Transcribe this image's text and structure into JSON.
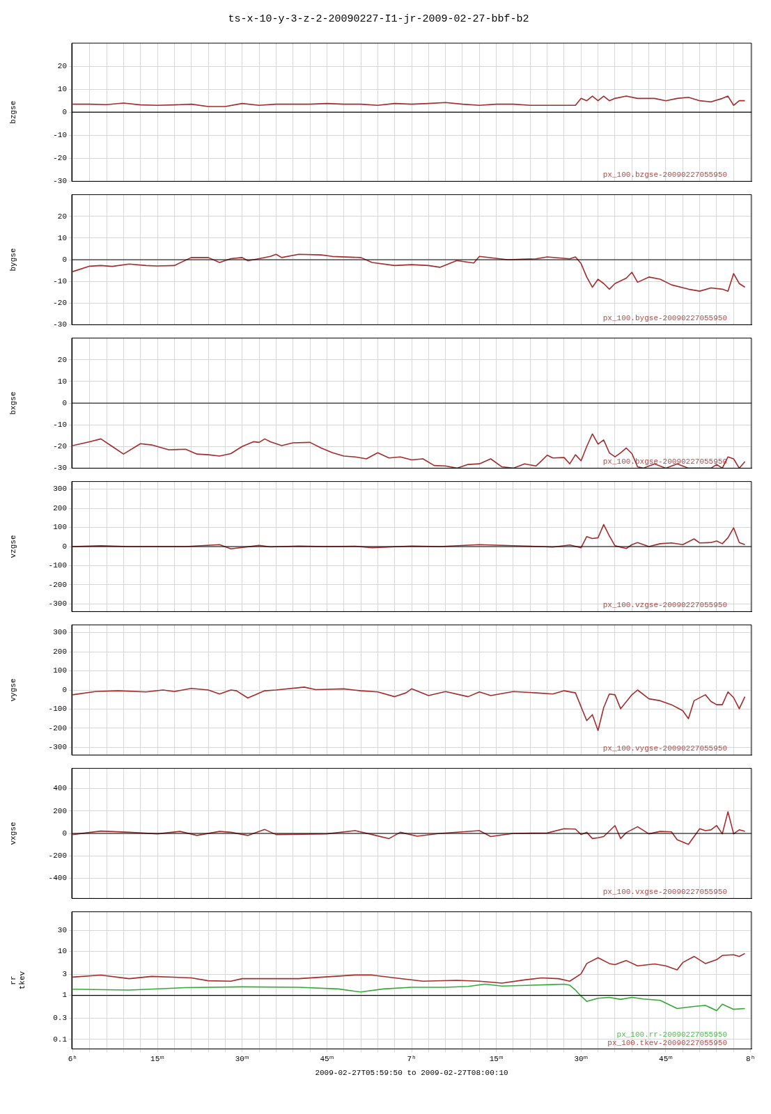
{
  "chart_data": [
    {
      "type": "line",
      "title": "ts-x-10-y-3-z-2-20090227-I1-jr-2009-02-27-bbf-b2",
      "ylabel": "bzgse",
      "xlim": [
        "2009-02-27T05:59:50",
        "2009-02-27T08:00:10"
      ],
      "ylim": [
        -30,
        30
      ],
      "yticks": [
        -30,
        -20,
        -10,
        0,
        10,
        20
      ],
      "grid": true,
      "legend": "bottom right",
      "tick_labels": "y",
      "ref_lines": [
        {
          "axis": "y",
          "value": 0,
          "color": "#000000"
        }
      ],
      "series": [
        {
          "name": "px_100.bzgse-20090227055950",
          "color": "#a52a2a",
          "x": [
            "2009-02-27T06:00",
            "2009-02-27T06:03",
            "2009-02-27T06:06",
            "2009-02-27T06:09",
            "2009-02-27T06:12",
            "2009-02-27T06:15",
            "2009-02-27T06:18",
            "2009-02-27T06:21",
            "2009-02-27T06:24",
            "2009-02-27T06:27",
            "2009-02-27T06:30",
            "2009-02-27T06:33",
            "2009-02-27T06:36",
            "2009-02-27T06:39",
            "2009-02-27T06:42",
            "2009-02-27T06:45",
            "2009-02-27T06:48",
            "2009-02-27T06:51",
            "2009-02-27T06:54",
            "2009-02-27T06:57",
            "2009-02-27T07:00",
            "2009-02-27T07:03",
            "2009-02-27T07:06",
            "2009-02-27T07:09",
            "2009-02-27T07:12",
            "2009-02-27T07:15",
            "2009-02-27T07:18",
            "2009-02-27T07:21",
            "2009-02-27T07:24",
            "2009-02-27T07:27",
            "2009-02-27T07:29",
            "2009-02-27T07:30",
            "2009-02-27T07:31",
            "2009-02-27T07:32",
            "2009-02-27T07:33",
            "2009-02-27T07:34",
            "2009-02-27T07:35",
            "2009-02-27T07:36",
            "2009-02-27T07:38",
            "2009-02-27T07:40",
            "2009-02-27T07:43",
            "2009-02-27T07:45",
            "2009-02-27T07:47",
            "2009-02-27T07:49",
            "2009-02-27T07:51",
            "2009-02-27T07:53",
            "2009-02-27T07:55",
            "2009-02-27T07:56",
            "2009-02-27T07:57",
            "2009-02-27T07:58",
            "2009-02-27T07:59"
          ],
          "values": [
            3.5,
            3.5,
            3.3,
            4,
            3.2,
            3,
            3.2,
            3.5,
            2.5,
            2.5,
            3.8,
            3,
            3.5,
            3.5,
            3.5,
            3.8,
            3.5,
            3.5,
            3,
            3.8,
            3.5,
            3.8,
            4.2,
            3.5,
            3,
            3.5,
            3.5,
            3,
            3,
            3,
            3,
            6,
            5,
            7,
            5,
            7,
            5,
            6,
            7,
            6,
            6,
            5,
            6,
            6.5,
            5,
            4.5,
            6,
            7,
            3,
            5,
            5
          ]
        }
      ]
    },
    {
      "type": "line",
      "ylabel": "bygse",
      "xlim": [
        "2009-02-27T05:59:50",
        "2009-02-27T08:00:10"
      ],
      "ylim": [
        -30,
        30
      ],
      "yticks": [
        -30,
        -20,
        -10,
        0,
        10,
        20
      ],
      "grid": true,
      "legend": "bottom right",
      "tick_labels": "y",
      "ref_lines": [
        {
          "axis": "y",
          "value": 0,
          "color": "#000000"
        }
      ],
      "series": [
        {
          "name": "px_100.bygse-20090227055950",
          "color": "#a52a2a",
          "x": [
            "2009-02-27T06:00",
            "2009-02-27T06:03",
            "2009-02-27T06:05",
            "2009-02-27T06:07",
            "2009-02-27T06:10",
            "2009-02-27T06:13",
            "2009-02-27T06:15",
            "2009-02-27T06:18",
            "2009-02-27T06:21",
            "2009-02-27T06:24",
            "2009-02-27T06:26",
            "2009-02-27T06:28",
            "2009-02-27T06:30",
            "2009-02-27T06:31",
            "2009-02-27T06:33",
            "2009-02-27T06:35",
            "2009-02-27T06:36",
            "2009-02-27T06:37",
            "2009-02-27T06:40",
            "2009-02-27T06:44",
            "2009-02-27T06:46",
            "2009-02-27T06:51",
            "2009-02-27T06:53",
            "2009-02-27T06:57",
            "2009-02-27T07:00",
            "2009-02-27T07:03",
            "2009-02-27T07:05",
            "2009-02-27T07:08",
            "2009-02-27T07:11",
            "2009-02-27T07:12",
            "2009-02-27T07:17",
            "2009-02-27T07:22",
            "2009-02-27T07:24",
            "2009-02-27T07:28",
            "2009-02-27T07:29",
            "2009-02-27T07:30",
            "2009-02-27T07:31",
            "2009-02-27T07:32",
            "2009-02-27T07:33",
            "2009-02-27T07:34",
            "2009-02-27T07:35",
            "2009-02-27T07:36",
            "2009-02-27T07:38",
            "2009-02-27T07:39",
            "2009-02-27T07:40",
            "2009-02-27T07:42",
            "2009-02-27T07:44",
            "2009-02-27T07:46",
            "2009-02-27T07:49",
            "2009-02-27T07:51",
            "2009-02-27T07:53",
            "2009-02-27T07:55",
            "2009-02-27T07:56",
            "2009-02-27T07:57",
            "2009-02-27T07:58",
            "2009-02-27T07:59"
          ],
          "values": [
            -5.5,
            -3,
            -2.7,
            -3.1,
            -2,
            -2.7,
            -2.9,
            -2.7,
            1,
            1,
            -1.3,
            0.5,
            1,
            -0.5,
            0.5,
            1.5,
            2.5,
            1,
            2.5,
            2.2,
            1.5,
            1,
            -1.3,
            -2.7,
            -2.3,
            -2.7,
            -3.5,
            -0.4,
            -1.5,
            1.5,
            0,
            0.4,
            1.3,
            0.4,
            1.3,
            -1.8,
            -8,
            -12.7,
            -9,
            -11,
            -13.6,
            -11,
            -8.5,
            -5.8,
            -10.4,
            -8,
            -9,
            -11.6,
            -13.6,
            -14.5,
            -13,
            -13.6,
            -14.5,
            -6.4,
            -11,
            -12.7
          ]
        }
      ]
    },
    {
      "type": "line",
      "ylabel": "bxgse",
      "xlim": [
        "2009-02-27T05:59:50",
        "2009-02-27T08:00:10"
      ],
      "ylim": [
        -30,
        30
      ],
      "yticks": [
        -30,
        -20,
        -10,
        0,
        10,
        20
      ],
      "grid": true,
      "legend": "bottom right",
      "tick_labels": "y",
      "ref_lines": [
        {
          "axis": "y",
          "value": 0,
          "color": "#000000"
        }
      ],
      "series": [
        {
          "name": "px_100.bxgse-20090227055950",
          "color": "#a52a2a",
          "x": [
            "2009-02-27T06:00",
            "2009-02-27T06:03",
            "2009-02-27T06:05",
            "2009-02-27T06:07",
            "2009-02-27T06:09",
            "2009-02-27T06:12",
            "2009-02-27T06:14",
            "2009-02-27T06:17",
            "2009-02-27T06:20",
            "2009-02-27T06:22",
            "2009-02-27T06:24",
            "2009-02-27T06:26",
            "2009-02-27T06:28",
            "2009-02-27T06:30",
            "2009-02-27T06:32",
            "2009-02-27T06:33",
            "2009-02-27T06:34",
            "2009-02-27T06:35",
            "2009-02-27T06:37",
            "2009-02-27T06:39",
            "2009-02-27T06:42",
            "2009-02-27T06:44",
            "2009-02-27T06:46",
            "2009-02-27T06:48",
            "2009-02-27T06:50",
            "2009-02-27T06:52",
            "2009-02-27T06:54",
            "2009-02-27T06:56",
            "2009-02-27T06:58",
            "2009-02-27T07:00",
            "2009-02-27T07:02",
            "2009-02-27T07:04",
            "2009-02-27T07:06",
            "2009-02-27T07:08",
            "2009-02-27T07:10",
            "2009-02-27T07:12",
            "2009-02-27T07:14",
            "2009-02-27T07:16",
            "2009-02-27T07:18",
            "2009-02-27T07:20",
            "2009-02-27T07:22",
            "2009-02-27T07:23",
            "2009-02-27T07:24",
            "2009-02-27T07:25",
            "2009-02-27T07:27",
            "2009-02-27T07:28",
            "2009-02-27T07:29",
            "2009-02-27T07:30",
            "2009-02-27T07:31",
            "2009-02-27T07:32",
            "2009-02-27T07:33",
            "2009-02-27T07:34",
            "2009-02-27T07:35",
            "2009-02-27T07:36",
            "2009-02-27T07:37",
            "2009-02-27T07:38",
            "2009-02-27T07:39",
            "2009-02-27T07:40",
            "2009-02-27T07:41",
            "2009-02-27T07:43",
            "2009-02-27T07:45",
            "2009-02-27T07:47",
            "2009-02-27T07:49",
            "2009-02-27T07:53",
            "2009-02-27T07:54",
            "2009-02-27T07:55",
            "2009-02-27T07:56",
            "2009-02-27T07:57",
            "2009-02-27T07:58",
            "2009-02-27T07:59"
          ],
          "values": [
            -19.6,
            -17.8,
            -16.5,
            -20,
            -23.5,
            -18.7,
            -19.3,
            -21.5,
            -21.3,
            -23.5,
            -23.8,
            -24.4,
            -23.3,
            -20,
            -17.8,
            -18.1,
            -16.5,
            -17.8,
            -19.6,
            -18.3,
            -18.1,
            -20.7,
            -22.9,
            -24.4,
            -24.8,
            -25.7,
            -22.9,
            -25.3,
            -24.8,
            -26.2,
            -25.7,
            -28.8,
            -29,
            -30,
            -28.3,
            -28,
            -25.7,
            -29.4,
            -30,
            -28,
            -29,
            -26.6,
            -24,
            -25.3,
            -25.1,
            -28,
            -23.8,
            -26.6,
            -20,
            -14.2,
            -18.9,
            -17,
            -22.9,
            -24.8,
            -22.9,
            -20.7,
            -23.3,
            -29.4,
            -30,
            -28,
            -30,
            -28,
            -30,
            -30,
            -28.3,
            -30,
            -24.8,
            -25.7,
            -30,
            -27
          ]
        }
      ]
    },
    {
      "type": "line",
      "ylabel": "vzgse",
      "xlim": [
        "2009-02-27T05:59:50",
        "2009-02-27T08:00:10"
      ],
      "ylim": [
        -340,
        340
      ],
      "yticks": [
        -300,
        -200,
        -100,
        0,
        100,
        200,
        300
      ],
      "grid": true,
      "legend": "bottom right",
      "tick_labels": "y",
      "ref_lines": [
        {
          "axis": "y",
          "value": 0,
          "color": "#000000"
        }
      ],
      "series": [
        {
          "name": "px_100.vzgse-20090227055950",
          "color": "#a52a2a",
          "x": [
            "2009-02-27T06:00",
            "2009-02-27T06:05",
            "2009-02-27T06:10",
            "2009-02-27T06:15",
            "2009-02-27T06:20",
            "2009-02-27T06:26",
            "2009-02-27T06:28",
            "2009-02-27T06:33",
            "2009-02-27T06:35",
            "2009-02-27T06:40",
            "2009-02-27T06:45",
            "2009-02-27T06:50",
            "2009-02-27T06:53",
            "2009-02-27T07:00",
            "2009-02-27T07:05",
            "2009-02-27T07:12",
            "2009-02-27T07:20",
            "2009-02-27T07:25",
            "2009-02-27T07:28",
            "2009-02-27T07:30",
            "2009-02-27T07:31",
            "2009-02-27T07:32",
            "2009-02-27T07:33",
            "2009-02-27T07:34",
            "2009-02-27T07:35",
            "2009-02-27T07:36",
            "2009-02-27T07:38",
            "2009-02-27T07:39",
            "2009-02-27T07:40",
            "2009-02-27T07:42",
            "2009-02-27T07:44",
            "2009-02-27T07:46",
            "2009-02-27T07:48",
            "2009-02-27T07:50",
            "2009-02-27T07:51",
            "2009-02-27T07:53",
            "2009-02-27T07:54",
            "2009-02-27T07:55",
            "2009-02-27T07:56",
            "2009-02-27T07:57",
            "2009-02-27T07:58",
            "2009-02-27T07:59"
          ],
          "values": [
            0,
            4,
            0,
            0,
            0,
            10,
            -12,
            6,
            -2,
            3,
            0,
            2,
            -6,
            3,
            0,
            10,
            3,
            -3,
            8,
            -6,
            52,
            42,
            46,
            115,
            56,
            4,
            -10,
            10,
            21,
            0,
            15,
            19,
            10,
            40,
            19,
            21,
            29,
            15,
            46,
            98,
            21,
            10
          ]
        }
      ]
    },
    {
      "type": "line",
      "ylabel": "vygse",
      "xlim": [
        "2009-02-27T05:59:50",
        "2009-02-27T08:00:10"
      ],
      "ylim": [
        -340,
        340
      ],
      "yticks": [
        -300,
        -200,
        -100,
        0,
        100,
        200,
        300
      ],
      "grid": true,
      "legend": "bottom right",
      "tick_labels": "y",
      "series": [
        {
          "name": "px_100.vygse-20090227055950",
          "color": "#a52a2a",
          "x": [
            "2009-02-27T06:00",
            "2009-02-27T06:04",
            "2009-02-27T06:08",
            "2009-02-27T06:13",
            "2009-02-27T06:16",
            "2009-02-27T06:18",
            "2009-02-27T06:21",
            "2009-02-27T06:24",
            "2009-02-27T06:26",
            "2009-02-27T06:28",
            "2009-02-27T06:29",
            "2009-02-27T06:31",
            "2009-02-27T06:34",
            "2009-02-27T06:36",
            "2009-02-27T06:41",
            "2009-02-27T06:43",
            "2009-02-27T06:48",
            "2009-02-27T06:51",
            "2009-02-27T06:54",
            "2009-02-27T06:57",
            "2009-02-27T06:59",
            "2009-02-27T07:00",
            "2009-02-27T07:03",
            "2009-02-27T07:06",
            "2009-02-27T07:10",
            "2009-02-27T07:12",
            "2009-02-27T07:14",
            "2009-02-27T07:18",
            "2009-02-27T07:22",
            "2009-02-27T07:25",
            "2009-02-27T07:27",
            "2009-02-27T07:29",
            "2009-02-27T07:30",
            "2009-02-27T07:31",
            "2009-02-27T07:32",
            "2009-02-27T07:33",
            "2009-02-27T07:34",
            "2009-02-27T07:35",
            "2009-02-27T07:36",
            "2009-02-27T07:37",
            "2009-02-27T07:39",
            "2009-02-27T07:40",
            "2009-02-27T07:42",
            "2009-02-27T07:44",
            "2009-02-27T07:46",
            "2009-02-27T07:48",
            "2009-02-27T07:49",
            "2009-02-27T07:50",
            "2009-02-27T07:52",
            "2009-02-27T07:53",
            "2009-02-27T07:54",
            "2009-02-27T07:55",
            "2009-02-27T07:56",
            "2009-02-27T07:57",
            "2009-02-27T07:58",
            "2009-02-27T07:59"
          ],
          "values": [
            -25,
            -8,
            -4,
            -10,
            0,
            -8,
            8,
            0,
            -21,
            0,
            -4,
            -42,
            -4,
            0,
            15,
            2,
            6,
            -4,
            -10,
            -35,
            -15,
            6,
            -29,
            -8,
            -35,
            -10,
            -29,
            -8,
            -15,
            -21,
            -4,
            -15,
            -88,
            -160,
            -129,
            -212,
            -92,
            -21,
            -25,
            -98,
            -25,
            0,
            -46,
            -56,
            -77,
            -108,
            -150,
            -56,
            -25,
            -60,
            -77,
            -77,
            -10,
            -40,
            -98,
            -35
          ]
        }
      ]
    },
    {
      "type": "line",
      "ylabel": "vxgse",
      "xlim": [
        "2009-02-27T05:59:50",
        "2009-02-27T08:00:10"
      ],
      "ylim": [
        -580,
        580
      ],
      "yticks": [
        -400,
        -200,
        0,
        200,
        400
      ],
      "grid": true,
      "legend": "bottom right",
      "tick_labels": "y",
      "ref_lines": [
        {
          "axis": "y",
          "value": 0,
          "color": "#000000"
        }
      ],
      "series": [
        {
          "name": "px_100.vxgse-20090227055950",
          "color": "#a52a2a",
          "x": [
            "2009-02-27T06:00",
            "2009-02-27T06:05",
            "2009-02-27T06:10",
            "2009-02-27T06:15",
            "2009-02-27T06:19",
            "2009-02-27T06:22",
            "2009-02-27T06:26",
            "2009-02-27T06:28",
            "2009-02-27T06:31",
            "2009-02-27T06:34",
            "2009-02-27T06:36",
            "2009-02-27T06:45",
            "2009-02-27T06:50",
            "2009-02-27T06:53",
            "2009-02-27T06:56",
            "2009-02-27T06:58",
            "2009-02-27T07:01",
            "2009-02-27T07:05",
            "2009-02-27T07:12",
            "2009-02-27T07:14",
            "2009-02-27T07:18",
            "2009-02-27T07:24",
            "2009-02-27T07:27",
            "2009-02-27T07:29",
            "2009-02-27T07:30",
            "2009-02-27T07:31",
            "2009-02-27T07:32",
            "2009-02-27T07:33",
            "2009-02-27T07:34",
            "2009-02-27T07:36",
            "2009-02-27T07:37",
            "2009-02-27T07:38",
            "2009-02-27T07:40",
            "2009-02-27T07:42",
            "2009-02-27T07:44",
            "2009-02-27T07:46",
            "2009-02-27T07:47",
            "2009-02-27T07:49",
            "2009-02-27T07:51",
            "2009-02-27T07:52",
            "2009-02-27T07:53",
            "2009-02-27T07:54",
            "2009-02-27T07:55",
            "2009-02-27T07:56",
            "2009-02-27T07:57",
            "2009-02-27T07:58",
            "2009-02-27T07:59"
          ],
          "values": [
            -10,
            21,
            10,
            -4,
            18,
            -18,
            18,
            10,
            -18,
            35,
            -10,
            -4,
            25,
            -10,
            -46,
            10,
            -25,
            0,
            25,
            -28,
            0,
            4,
            42,
            39,
            -10,
            10,
            -46,
            -39,
            -28,
            70,
            -46,
            7,
            60,
            -4,
            18,
            14,
            -56,
            -98,
            42,
            25,
            32,
            70,
            -4,
            193,
            -4,
            32,
            18
          ]
        }
      ]
    },
    {
      "type": "line",
      "ylabel": "rr\ntkev",
      "xlabel": "2009-02-27T05:59:50 to 2009-02-27T08:00:10",
      "log": true,
      "xlim": [
        "2009-02-27T05:59:50",
        "2009-02-27T08:00:10"
      ],
      "ylim": [
        0.06,
        80
      ],
      "yticks": [
        0.1,
        0.3,
        1,
        3,
        10,
        30
      ],
      "grid": true,
      "legend": "bottom right",
      "ref_lines": [
        {
          "axis": "y",
          "value": 1,
          "color": "#000000"
        }
      ],
      "xticks": [
        {
          "value": "2009-02-27T06:00",
          "label": "6ʰ"
        },
        {
          "value": "2009-02-27T06:03",
          "label": null
        },
        {
          "value": "2009-02-27T06:06",
          "label": null
        },
        {
          "value": "2009-02-27T06:09",
          "label": null
        },
        {
          "value": "2009-02-27T06:12",
          "label": null
        },
        {
          "value": "2009-02-27T06:15",
          "label": "15ᵐ"
        },
        {
          "value": "2009-02-27T06:18",
          "label": null
        },
        {
          "value": "2009-02-27T06:21",
          "label": null
        },
        {
          "value": "2009-02-27T06:24",
          "label": null
        },
        {
          "value": "2009-02-27T06:27",
          "label": null
        },
        {
          "value": "2009-02-27T06:30",
          "label": "30ᵐ"
        },
        {
          "value": "2009-02-27T06:33",
          "label": null
        },
        {
          "value": "2009-02-27T06:36",
          "label": null
        },
        {
          "value": "2009-02-27T06:39",
          "label": null
        },
        {
          "value": "2009-02-27T06:42",
          "label": null
        },
        {
          "value": "2009-02-27T06:45",
          "label": "45ᵐ"
        },
        {
          "value": "2009-02-27T06:48",
          "label": null
        },
        {
          "value": "2009-02-27T06:51",
          "label": null
        },
        {
          "value": "2009-02-27T06:54",
          "label": null
        },
        {
          "value": "2009-02-27T06:57",
          "label": null
        },
        {
          "value": "2009-02-27T07:00",
          "label": "7ʰ"
        },
        {
          "value": "2009-02-27T07:03",
          "label": null
        },
        {
          "value": "2009-02-27T07:06",
          "label": null
        },
        {
          "value": "2009-02-27T07:09",
          "label": null
        },
        {
          "value": "2009-02-27T07:12",
          "label": null
        },
        {
          "value": "2009-02-27T07:15",
          "label": "15ᵐ"
        },
        {
          "value": "2009-02-27T07:18",
          "label": null
        },
        {
          "value": "2009-02-27T07:21",
          "label": null
        },
        {
          "value": "2009-02-27T07:24",
          "label": null
        },
        {
          "value": "2009-02-27T07:27",
          "label": null
        },
        {
          "value": "2009-02-27T07:30",
          "label": "30ᵐ"
        },
        {
          "value": "2009-02-27T07:33",
          "label": null
        },
        {
          "value": "2009-02-27T07:36",
          "label": null
        },
        {
          "value": "2009-02-27T07:39",
          "label": null
        },
        {
          "value": "2009-02-27T07:42",
          "label": null
        },
        {
          "value": "2009-02-27T07:45",
          "label": "45ᵐ"
        },
        {
          "value": "2009-02-27T07:48",
          "label": null
        },
        {
          "value": "2009-02-27T07:51",
          "label": null
        },
        {
          "value": "2009-02-27T07:54",
          "label": null
        },
        {
          "value": "2009-02-27T07:57",
          "label": null
        },
        {
          "value": "2009-02-27T08:00",
          "label": "8ʰ"
        }
      ],
      "series": [
        {
          "name": "px_100.rr-20090227055950",
          "color": "#33aa33",
          "x": [
            "2009-02-27T06:00",
            "2009-02-27T06:10",
            "2009-02-27T06:20",
            "2009-02-27T06:30",
            "2009-02-27T06:40",
            "2009-02-27T06:47",
            "2009-02-27T06:51",
            "2009-02-27T06:55",
            "2009-02-27T07:00",
            "2009-02-27T07:06",
            "2009-02-27T07:10",
            "2009-02-27T07:13",
            "2009-02-27T07:16",
            "2009-02-27T07:24",
            "2009-02-27T07:27",
            "2009-02-27T07:28",
            "2009-02-27T07:29",
            "2009-02-27T07:30",
            "2009-02-27T07:31",
            "2009-02-27T07:33",
            "2009-02-27T07:35",
            "2009-02-27T07:37",
            "2009-02-27T07:39",
            "2009-02-27T07:41",
            "2009-02-27T07:44",
            "2009-02-27T07:47",
            "2009-02-27T07:50",
            "2009-02-27T07:52",
            "2009-02-27T07:54",
            "2009-02-27T07:55",
            "2009-02-27T07:57",
            "2009-02-27T07:59"
          ],
          "values": [
            1.38,
            1.32,
            1.5,
            1.56,
            1.53,
            1.4,
            1.19,
            1.4,
            1.53,
            1.53,
            1.6,
            1.8,
            1.63,
            1.74,
            1.8,
            1.7,
            1.32,
            0.96,
            0.73,
            0.86,
            0.9,
            0.81,
            0.9,
            0.83,
            0.77,
            0.5,
            0.56,
            0.59,
            0.45,
            0.63,
            0.48,
            0.5
          ]
        },
        {
          "name": "px_100.tkev-20090227055950",
          "color": "#a52a2a",
          "x": [
            "2009-02-27T06:00",
            "2009-02-27T06:05",
            "2009-02-27T06:10",
            "2009-02-27T06:14",
            "2009-02-27T06:21",
            "2009-02-27T06:24",
            "2009-02-27T06:28",
            "2009-02-27T06:30",
            "2009-02-27T06:40",
            "2009-02-27T06:50",
            "2009-02-27T06:53",
            "2009-02-27T06:57",
            "2009-02-27T07:02",
            "2009-02-27T07:08",
            "2009-02-27T07:12",
            "2009-02-27T07:16",
            "2009-02-27T07:20",
            "2009-02-27T07:23",
            "2009-02-27T07:26",
            "2009-02-27T07:28",
            "2009-02-27T07:30",
            "2009-02-27T07:31",
            "2009-02-27T07:33",
            "2009-02-27T07:35",
            "2009-02-27T07:36",
            "2009-02-27T07:38",
            "2009-02-27T07:40",
            "2009-02-27T07:43",
            "2009-02-27T07:45",
            "2009-02-27T07:47",
            "2009-02-27T07:48",
            "2009-02-27T07:50",
            "2009-02-27T07:52",
            "2009-02-27T07:54",
            "2009-02-27T07:55",
            "2009-02-27T07:57",
            "2009-02-27T07:58",
            "2009-02-27T07:59"
          ],
          "values": [
            2.6,
            2.9,
            2.4,
            2.7,
            2.5,
            2.15,
            2.1,
            2.4,
            2.4,
            2.9,
            2.9,
            2.5,
            2.1,
            2.2,
            2.1,
            1.9,
            2.25,
            2.5,
            2.4,
            2.1,
            3.1,
            5.3,
            7.2,
            5.3,
            5,
            6.2,
            4.7,
            5.2,
            4.7,
            3.8,
            5.6,
            7.7,
            5.3,
            6.5,
            8.1,
            8.4,
            7.7,
            9
          ]
        }
      ]
    }
  ]
}
